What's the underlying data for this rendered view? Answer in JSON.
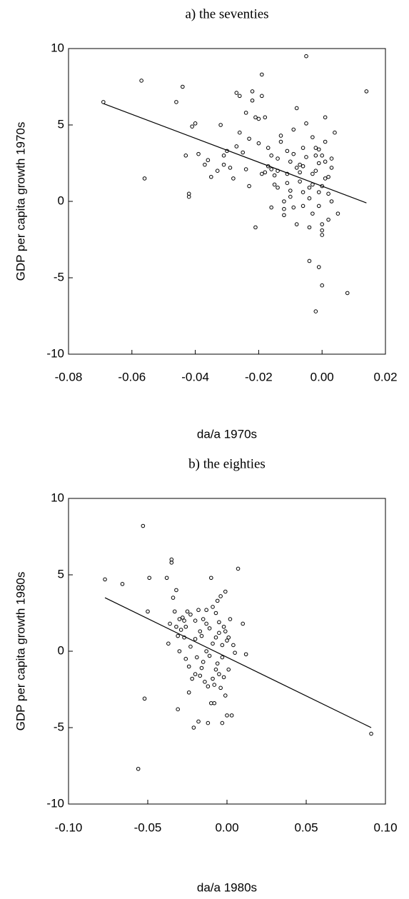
{
  "chart_data": [
    {
      "type": "scatter",
      "title": "a)   the seventies",
      "xlabel": "da/a 1970s",
      "ylabel": "GDP per capita growth 1970s",
      "xlim": [
        -0.08,
        0.02
      ],
      "ylim": [
        -10,
        10
      ],
      "xticks": [
        -0.08,
        -0.06,
        -0.04,
        -0.02,
        0.0,
        0.02
      ],
      "xtick_labels": [
        "-0.08",
        "-0.06",
        "-0.04",
        "-0.02",
        "0.00",
        "0.02"
      ],
      "yticks": [
        -10,
        -5,
        0,
        5,
        10
      ],
      "ytick_labels": [
        "-10",
        "-5",
        "0",
        "5",
        "10"
      ],
      "grid": false,
      "fit_line": {
        "x": [
          -0.069,
          0.014
        ],
        "y": [
          6.4,
          -0.1
        ]
      },
      "points": [
        [
          -0.069,
          6.5
        ],
        [
          -0.057,
          7.9
        ],
        [
          -0.056,
          1.5
        ],
        [
          -0.046,
          6.5
        ],
        [
          -0.044,
          7.5
        ],
        [
          -0.043,
          3.0
        ],
        [
          -0.042,
          0.5
        ],
        [
          -0.042,
          0.3
        ],
        [
          -0.041,
          4.9
        ],
        [
          -0.04,
          5.1
        ],
        [
          -0.039,
          3.1
        ],
        [
          -0.037,
          2.4
        ],
        [
          -0.036,
          2.7
        ],
        [
          -0.035,
          1.6
        ],
        [
          -0.033,
          2.0
        ],
        [
          -0.032,
          5.0
        ],
        [
          -0.031,
          3.0
        ],
        [
          -0.031,
          2.4
        ],
        [
          -0.03,
          3.3
        ],
        [
          -0.029,
          2.2
        ],
        [
          -0.028,
          1.5
        ],
        [
          -0.027,
          3.6
        ],
        [
          -0.027,
          7.1
        ],
        [
          -0.026,
          6.9
        ],
        [
          -0.026,
          4.5
        ],
        [
          -0.025,
          3.2
        ],
        [
          -0.024,
          5.8
        ],
        [
          -0.023,
          4.1
        ],
        [
          -0.022,
          7.2
        ],
        [
          -0.022,
          6.6
        ],
        [
          -0.021,
          5.5
        ],
        [
          -0.02,
          5.4
        ],
        [
          -0.02,
          3.8
        ],
        [
          -0.019,
          8.3
        ],
        [
          -0.019,
          6.9
        ],
        [
          -0.018,
          5.5
        ],
        [
          -0.017,
          2.3
        ],
        [
          -0.017,
          3.5
        ],
        [
          -0.016,
          2.1
        ],
        [
          -0.016,
          -0.4
        ],
        [
          -0.015,
          1.7
        ],
        [
          -0.015,
          1.1
        ],
        [
          -0.014,
          0.9
        ],
        [
          -0.014,
          2.8
        ],
        [
          -0.013,
          3.9
        ],
        [
          -0.013,
          4.3
        ],
        [
          -0.012,
          0.0
        ],
        [
          -0.012,
          -0.9
        ],
        [
          -0.011,
          3.3
        ],
        [
          -0.011,
          1.8
        ],
        [
          -0.01,
          2.6
        ],
        [
          -0.01,
          0.3
        ],
        [
          -0.009,
          3.1
        ],
        [
          -0.009,
          4.7
        ],
        [
          -0.008,
          2.2
        ],
        [
          -0.008,
          6.1
        ],
        [
          -0.007,
          1.3
        ],
        [
          -0.007,
          2.4
        ],
        [
          -0.006,
          3.5
        ],
        [
          -0.006,
          0.6
        ],
        [
          -0.005,
          5.1
        ],
        [
          -0.005,
          2.9
        ],
        [
          -0.004,
          -1.7
        ],
        [
          -0.004,
          0.9
        ],
        [
          -0.003,
          1.8
        ],
        [
          -0.003,
          4.2
        ],
        [
          -0.002,
          2.0
        ],
        [
          -0.002,
          3.5
        ],
        [
          -0.001,
          -0.3
        ],
        [
          -0.001,
          2.5
        ],
        [
          0.0,
          1.0
        ],
        [
          0.0,
          -1.9
        ],
        [
          0.0,
          3.0
        ],
        [
          0.001,
          1.5
        ],
        [
          0.001,
          5.5
        ],
        [
          0.002,
          0.5
        ],
        [
          0.002,
          -1.2
        ],
        [
          0.003,
          2.8
        ],
        [
          0.003,
          0.0
        ],
        [
          0.004,
          4.5
        ],
        [
          -0.024,
          2.1
        ],
        [
          -0.021,
          -1.7
        ],
        [
          -0.018,
          1.9
        ],
        [
          -0.012,
          -0.5
        ],
        [
          -0.01,
          0.7
        ],
        [
          -0.008,
          -1.5
        ],
        [
          -0.006,
          -0.3
        ],
        [
          -0.005,
          9.5
        ],
        [
          -0.004,
          -3.9
        ],
        [
          -0.003,
          1.1
        ],
        [
          -0.002,
          3.0
        ],
        [
          -0.001,
          3.4
        ],
        [
          0.0,
          -1.5
        ],
        [
          0.0,
          -2.2
        ],
        [
          0.001,
          2.6
        ],
        [
          -0.002,
          -7.2
        ],
        [
          -0.001,
          -4.3
        ],
        [
          0.0,
          -5.5
        ],
        [
          0.008,
          -6.0
        ],
        [
          0.014,
          7.2
        ],
        [
          -0.023,
          1.0
        ],
        [
          -0.019,
          1.8
        ],
        [
          -0.016,
          3.0
        ],
        [
          -0.014,
          2.0
        ],
        [
          -0.011,
          1.2
        ],
        [
          -0.009,
          -0.4
        ],
        [
          -0.007,
          1.9
        ],
        [
          -0.006,
          2.3
        ],
        [
          -0.004,
          0.2
        ],
        [
          -0.003,
          -0.8
        ],
        [
          -0.001,
          0.6
        ],
        [
          0.001,
          3.9
        ],
        [
          0.002,
          1.6
        ],
        [
          0.003,
          2.2
        ],
        [
          0.005,
          -0.8
        ]
      ]
    },
    {
      "type": "scatter",
      "title": "b) the eighties",
      "xlabel": "da/a 1980s",
      "ylabel": "GDP per capita growth 1980s",
      "xlim": [
        -0.1,
        0.1
      ],
      "ylim": [
        -10,
        10
      ],
      "xticks": [
        -0.1,
        -0.05,
        0.0,
        0.05,
        0.1
      ],
      "xtick_labels": [
        "-0.10",
        "-0.05",
        "0.00",
        "0.05",
        "0.10"
      ],
      "yticks": [
        -10,
        -5,
        0,
        5,
        10
      ],
      "ytick_labels": [
        "-10",
        "-5",
        "0",
        "5",
        "10"
      ],
      "grid": false,
      "fit_line": {
        "x": [
          -0.077,
          0.091
        ],
        "y": [
          3.5,
          -5.0
        ]
      },
      "points": [
        [
          -0.077,
          4.7
        ],
        [
          -0.066,
          4.4
        ],
        [
          -0.056,
          -7.7
        ],
        [
          -0.053,
          8.2
        ],
        [
          -0.052,
          -3.1
        ],
        [
          -0.05,
          2.6
        ],
        [
          -0.049,
          4.8
        ],
        [
          -0.038,
          4.8
        ],
        [
          -0.037,
          0.5
        ],
        [
          -0.036,
          1.8
        ],
        [
          -0.035,
          5.8
        ],
        [
          -0.035,
          6.0
        ],
        [
          -0.034,
          3.5
        ],
        [
          -0.033,
          2.6
        ],
        [
          -0.032,
          1.6
        ],
        [
          -0.032,
          4.0
        ],
        [
          -0.031,
          -3.8
        ],
        [
          -0.03,
          2.1
        ],
        [
          -0.03,
          0.0
        ],
        [
          -0.029,
          1.4
        ],
        [
          -0.028,
          2.2
        ],
        [
          -0.027,
          0.9
        ],
        [
          -0.026,
          -0.5
        ],
        [
          -0.026,
          1.6
        ],
        [
          -0.025,
          2.6
        ],
        [
          -0.024,
          -1.0
        ],
        [
          -0.024,
          -2.7
        ],
        [
          -0.023,
          2.4
        ],
        [
          -0.022,
          -1.8
        ],
        [
          -0.021,
          -5.0
        ],
        [
          -0.02,
          2.0
        ],
        [
          -0.02,
          0.8
        ],
        [
          -0.019,
          -0.4
        ],
        [
          -0.018,
          -4.6
        ],
        [
          -0.018,
          2.7
        ],
        [
          -0.017,
          -1.6
        ],
        [
          -0.016,
          1.0
        ],
        [
          -0.016,
          -1.1
        ],
        [
          -0.015,
          2.1
        ],
        [
          -0.014,
          -2.0
        ],
        [
          -0.013,
          0.0
        ],
        [
          -0.013,
          2.7
        ],
        [
          -0.012,
          -2.3
        ],
        [
          -0.012,
          -4.7
        ],
        [
          -0.011,
          1.5
        ],
        [
          -0.01,
          4.8
        ],
        [
          -0.01,
          -3.4
        ],
        [
          -0.009,
          2.9
        ],
        [
          -0.009,
          0.5
        ],
        [
          -0.008,
          -2.2
        ],
        [
          -0.008,
          -3.4
        ],
        [
          -0.007,
          2.5
        ],
        [
          -0.007,
          -1.2
        ],
        [
          -0.006,
          3.3
        ],
        [
          -0.006,
          -0.8
        ],
        [
          -0.005,
          1.9
        ],
        [
          -0.005,
          -1.5
        ],
        [
          -0.004,
          3.6
        ],
        [
          -0.004,
          -2.4
        ],
        [
          -0.003,
          0.4
        ],
        [
          -0.003,
          -4.7
        ],
        [
          -0.002,
          1.6
        ],
        [
          -0.002,
          -1.7
        ],
        [
          -0.001,
          3.9
        ],
        [
          -0.001,
          -2.9
        ],
        [
          0.0,
          0.7
        ],
        [
          0.0,
          -4.2
        ],
        [
          0.001,
          -1.2
        ],
        [
          0.002,
          2.1
        ],
        [
          0.003,
          -4.2
        ],
        [
          0.005,
          -0.1
        ],
        [
          0.007,
          5.4
        ],
        [
          0.01,
          1.8
        ],
        [
          0.012,
          -0.2
        ],
        [
          0.091,
          -5.4
        ],
        [
          -0.031,
          1.0
        ],
        [
          -0.027,
          2.0
        ],
        [
          -0.023,
          0.3
        ],
        [
          -0.02,
          -1.5
        ],
        [
          -0.017,
          1.3
        ],
        [
          -0.015,
          -0.7
        ],
        [
          -0.013,
          1.8
        ],
        [
          -0.011,
          -0.3
        ],
        [
          -0.009,
          -1.8
        ],
        [
          -0.007,
          0.9
        ],
        [
          -0.005,
          1.2
        ],
        [
          -0.003,
          -0.4
        ],
        [
          -0.001,
          1.3
        ],
        [
          0.001,
          0.9
        ],
        [
          0.004,
          0.4
        ]
      ]
    }
  ]
}
